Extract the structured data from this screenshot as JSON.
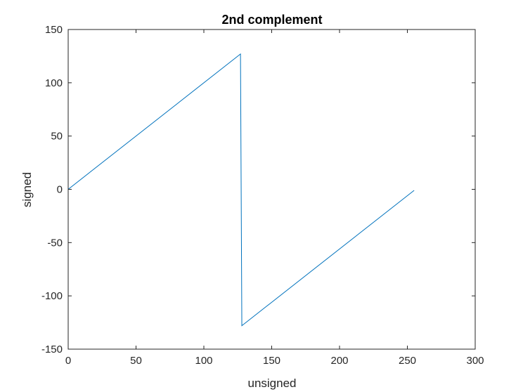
{
  "chart_data": {
    "type": "line",
    "title": "2nd complement",
    "xlabel": "unsigned",
    "ylabel": "signed",
    "xlim": [
      0,
      300
    ],
    "ylim": [
      -150,
      150
    ],
    "xticks": [
      0,
      50,
      100,
      150,
      200,
      250,
      300
    ],
    "yticks": [
      -150,
      -100,
      -50,
      0,
      50,
      100,
      150
    ],
    "xtick_labels": [
      "0",
      "50",
      "100",
      "150",
      "200",
      "250",
      "300"
    ],
    "ytick_labels": [
      "-150",
      "-100",
      "-50",
      "0",
      "50",
      "100",
      "150"
    ],
    "grid": false,
    "series": [
      {
        "color": "#0072BD",
        "x": [
          0,
          127,
          128,
          255
        ],
        "y": [
          0,
          127,
          -128,
          -1
        ]
      }
    ]
  }
}
